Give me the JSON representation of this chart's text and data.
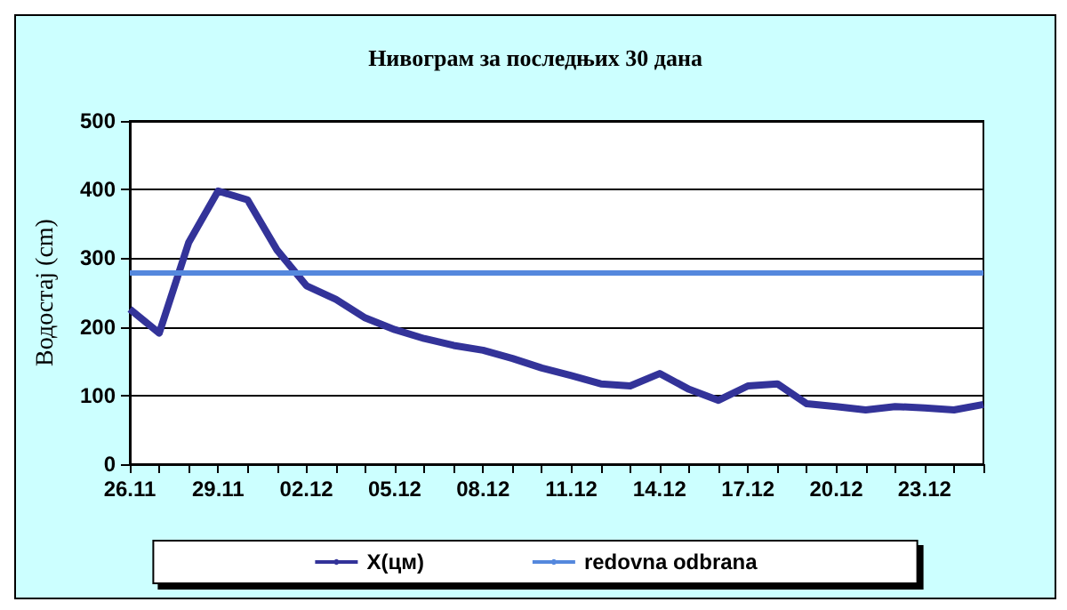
{
  "chart_data": {
    "type": "line",
    "title": "Нивограм за последњих 30 дана",
    "ylabel": "Водостај (cm)",
    "categories": [
      "26.11",
      null,
      null,
      "29.11",
      null,
      null,
      "02.12",
      null,
      null,
      "05.12",
      null,
      null,
      "08.12",
      null,
      null,
      "11.12",
      null,
      null,
      "14.12",
      null,
      null,
      "17.12",
      null,
      null,
      "20.12",
      null,
      null,
      "23.12",
      null,
      null
    ],
    "series": [
      {
        "name": "X(цм)",
        "color": "#333399",
        "values": [
          226,
          191,
          323,
          398,
          385,
          312,
          260,
          240,
          213,
          196,
          183,
          173,
          166,
          154,
          140,
          129,
          117,
          114,
          132,
          109,
          93,
          114,
          117,
          88,
          84,
          79,
          84,
          82,
          79,
          87
        ]
      }
    ],
    "ref_lines": [
      {
        "axis": "y",
        "value": 280,
        "label": "redovna odbrana",
        "color": "#5588dd"
      }
    ],
    "ylim": [
      0,
      500
    ],
    "yticks": [
      0,
      100,
      200,
      300,
      400,
      500
    ],
    "grid": "y",
    "legend": "bottom",
    "marker": "none",
    "line_style": "solid"
  }
}
